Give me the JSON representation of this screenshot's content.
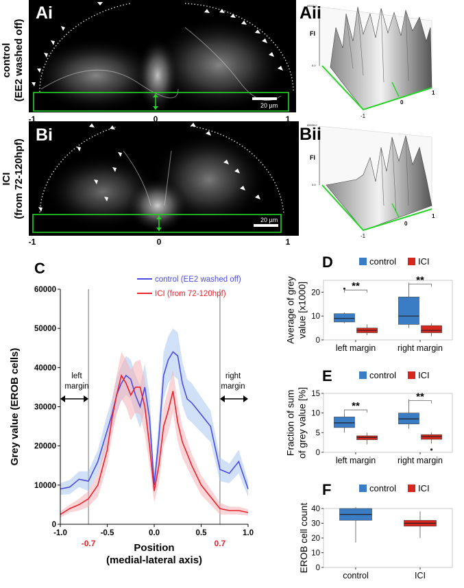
{
  "panels": {
    "ai": "Ai",
    "aii": "Aii",
    "bi": "Bi",
    "bii": "Bii",
    "c": "C",
    "d": "D",
    "e": "E",
    "f": "F"
  },
  "row_labels": {
    "a_line1": "control",
    "a_line2": "(EE2 washed off)",
    "b_line1": "ICI",
    "b_line2": "(from 72-120hpf)"
  },
  "micrographs": {
    "scale_bar": "20 µm",
    "axis_ticks": [
      "-1",
      "0",
      "1"
    ]
  },
  "surface_plots": {
    "a": {
      "fi_label": "FI",
      "max": "65535.0",
      "min": "0.0",
      "ticks": [
        "-1",
        "0",
        "1"
      ]
    },
    "b": {
      "fi_label": "FI",
      "max": "65535.0",
      "min": "0.0",
      "ticks": [
        "-1",
        "0",
        "1"
      ]
    }
  },
  "colors": {
    "control": "#4a4ae0",
    "control_band": "#a9c7f1",
    "ici": "#e8222c",
    "ici_band": "#f6b2b6",
    "box_control": "#3b7dc4",
    "box_ici": "#d7261e",
    "roi": "#25d425",
    "highlight": "#e8222c"
  },
  "chart_data": [
    {
      "id": "C",
      "type": "line",
      "title": "",
      "xlabel": "Position\n(medial-lateral axis)",
      "ylabel": "Grey value (EROB cells)",
      "xlim": [
        -1.0,
        1.0
      ],
      "ylim": [
        0,
        60000
      ],
      "xticks": [
        "-1.0",
        "-0.5",
        "0.0",
        "0.5",
        "1.0"
      ],
      "yticks": [
        "0",
        "10000",
        "20000",
        "30000",
        "40000",
        "50000",
        "60000"
      ],
      "highlight_ticks": [
        "-0.7",
        "0.7"
      ],
      "margins": {
        "left": "left\nmargin",
        "right": "right\nmargin",
        "at": [
          -0.7,
          0.7
        ]
      },
      "legend": [
        "control (EE2 washed off)",
        "ICI (from 72-120hpf)"
      ],
      "x": [
        -1.0,
        -0.9,
        -0.8,
        -0.7,
        -0.6,
        -0.5,
        -0.45,
        -0.4,
        -0.35,
        -0.3,
        -0.25,
        -0.2,
        -0.15,
        -0.1,
        -0.05,
        0.0,
        0.05,
        0.1,
        0.15,
        0.2,
        0.25,
        0.3,
        0.35,
        0.4,
        0.5,
        0.6,
        0.7,
        0.8,
        0.9,
        1.0
      ],
      "series": [
        {
          "name": "control (EE2 washed off)",
          "values": [
            9000,
            9500,
            11500,
            11000,
            16000,
            24000,
            28000,
            33000,
            36000,
            38000,
            37000,
            33000,
            30000,
            35000,
            27000,
            10000,
            22000,
            38000,
            42000,
            44000,
            43000,
            36000,
            32000,
            31000,
            28000,
            25000,
            14000,
            13000,
            16000,
            9000
          ],
          "sd": [
            1500,
            1800,
            2000,
            2500,
            3000,
            4000,
            4000,
            4500,
            4500,
            5000,
            5000,
            5000,
            5500,
            6000,
            6000,
            3000,
            5000,
            6000,
            6000,
            6000,
            6000,
            5500,
            5000,
            5000,
            4500,
            4000,
            3000,
            2500,
            3000,
            2000
          ]
        },
        {
          "name": "ICI (from 72-120hpf)",
          "values": [
            2500,
            4000,
            5000,
            6500,
            10000,
            19000,
            27000,
            33000,
            38000,
            36000,
            33000,
            35000,
            35000,
            30000,
            20000,
            8500,
            15000,
            25000,
            29000,
            34000,
            26000,
            21000,
            18000,
            15000,
            10000,
            7000,
            4000,
            3500,
            3500,
            3000
          ],
          "sd": [
            800,
            1000,
            1500,
            2000,
            3000,
            4000,
            4500,
            5000,
            6000,
            6000,
            6500,
            6500,
            7000,
            7000,
            5000,
            3000,
            4500,
            5000,
            5500,
            5500,
            5000,
            4000,
            3500,
            3000,
            2500,
            2000,
            1500,
            1000,
            1000,
            800
          ]
        }
      ]
    },
    {
      "id": "D",
      "type": "box",
      "ylabel": "Average of grey\nvalue [x1000]",
      "ylim": [
        0,
        25
      ],
      "yticks": [
        "0",
        "10",
        "20"
      ],
      "categories": [
        "left margin",
        "right margin"
      ],
      "legend": [
        "control",
        "ICI"
      ],
      "significance": [
        "**",
        "**"
      ],
      "series": [
        {
          "name": "control",
          "boxes": [
            {
              "min": 7,
              "q1": 7.5,
              "median": 9,
              "q3": 11,
              "max": 11.5,
              "outliers": [
                21.5
              ]
            },
            {
              "min": 5,
              "q1": 6.5,
              "median": 10,
              "q3": 18,
              "max": 24,
              "outliers": []
            }
          ]
        },
        {
          "name": "ICI",
          "boxes": [
            {
              "min": 2,
              "q1": 3,
              "median": 4,
              "q3": 5,
              "max": 6.5,
              "outliers": []
            },
            {
              "min": 1.5,
              "q1": 3,
              "median": 4,
              "q3": 6,
              "max": 7,
              "outliers": []
            }
          ]
        }
      ]
    },
    {
      "id": "E",
      "type": "box",
      "ylabel": "Fraction of sum\nof grey value [%]",
      "ylim": [
        0,
        15
      ],
      "yticks": [
        "0",
        "5",
        "10",
        "15"
      ],
      "categories": [
        "left margin",
        "right margin"
      ],
      "legend": [
        "control",
        "ICI"
      ],
      "significance": [
        "**",
        "**"
      ],
      "series": [
        {
          "name": "control",
          "boxes": [
            {
              "min": 5,
              "q1": 6.3,
              "median": 7.5,
              "q3": 9,
              "max": 10,
              "outliers": []
            },
            {
              "min": 6,
              "q1": 7.2,
              "median": 8.5,
              "q3": 10,
              "max": 13.5,
              "outliers": []
            }
          ]
        },
        {
          "name": "ICI",
          "boxes": [
            {
              "min": 2,
              "q1": 3.2,
              "median": 3.8,
              "q3": 4.2,
              "max": 5,
              "outliers": []
            },
            {
              "min": 2.2,
              "q1": 3.3,
              "median": 4,
              "q3": 4.5,
              "max": 5,
              "outliers": [
                0.7
              ]
            }
          ]
        }
      ]
    },
    {
      "id": "F",
      "type": "box",
      "ylabel": "EROB cell count",
      "ylim": [
        0,
        40
      ],
      "yticks": [
        "0",
        "10",
        "20",
        "30",
        "40"
      ],
      "categories": [
        "control",
        "ICI"
      ],
      "legend": [
        "control",
        "ICI"
      ],
      "series": [
        {
          "name": "control",
          "boxes": [
            {
              "min": 17,
              "q1": 32,
              "median": 36,
              "q3": 40,
              "max": 41,
              "outliers": []
            }
          ]
        },
        {
          "name": "ICI",
          "boxes": [
            {
              "min": 20,
              "q1": 28,
              "median": 30,
              "q3": 32,
              "max": 38,
              "outliers": []
            }
          ]
        }
      ]
    }
  ]
}
